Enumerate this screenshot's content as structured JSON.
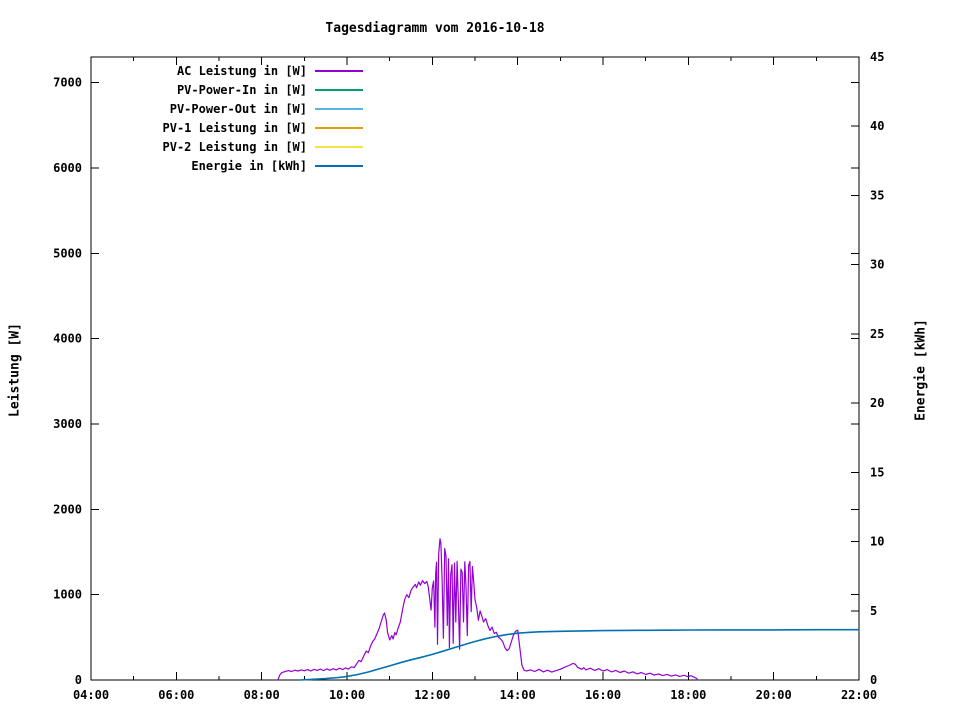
{
  "page": {
    "background": "#ffffff"
  },
  "chart_data": {
    "type": "line",
    "title": "Tagesdiagramm vom 2016-10-18",
    "grid": false,
    "legend_position": "top-left-inside",
    "x_axis": {
      "unit": "time-of-day",
      "range_hours": [
        4,
        22
      ],
      "major_tick_step_hours": 2,
      "minor_tick_step_hours": 1,
      "tick_labels": [
        "04:00",
        "06:00",
        "08:00",
        "10:00",
        "12:00",
        "14:00",
        "16:00",
        "18:00",
        "20:00",
        "22:00"
      ]
    },
    "y_left": {
      "label": "Leistung [W]",
      "ticks": [
        0,
        1000,
        2000,
        3000,
        4000,
        5000,
        6000,
        7000
      ],
      "range": [
        0,
        7300
      ]
    },
    "y_right": {
      "label": "Energie [kWh]",
      "ticks": [
        0,
        5,
        10,
        15,
        20,
        25,
        30,
        35,
        40,
        45
      ],
      "range": [
        0,
        45
      ]
    },
    "series": [
      {
        "name": "AC Leistung in [W]",
        "color": "#9400d3",
        "axis": "left",
        "points": [
          [
            8.38,
            0
          ],
          [
            8.42,
            55
          ],
          [
            8.47,
            85
          ],
          [
            8.55,
            100
          ],
          [
            8.63,
            110
          ],
          [
            8.7,
            100
          ],
          [
            8.78,
            115
          ],
          [
            8.85,
            105
          ],
          [
            8.93,
            118
          ],
          [
            9.0,
            108
          ],
          [
            9.08,
            122
          ],
          [
            9.15,
            105
          ],
          [
            9.23,
            125
          ],
          [
            9.3,
            112
          ],
          [
            9.38,
            128
          ],
          [
            9.45,
            110
          ],
          [
            9.53,
            130
          ],
          [
            9.6,
            115
          ],
          [
            9.68,
            132
          ],
          [
            9.75,
            118
          ],
          [
            9.83,
            138
          ],
          [
            9.9,
            122
          ],
          [
            9.97,
            142
          ],
          [
            10.03,
            128
          ],
          [
            10.1,
            155
          ],
          [
            10.17,
            145
          ],
          [
            10.22,
            185
          ],
          [
            10.28,
            230
          ],
          [
            10.33,
            215
          ],
          [
            10.4,
            290
          ],
          [
            10.45,
            340
          ],
          [
            10.5,
            320
          ],
          [
            10.55,
            395
          ],
          [
            10.6,
            450
          ],
          [
            10.65,
            480
          ],
          [
            10.7,
            540
          ],
          [
            10.75,
            600
          ],
          [
            10.8,
            680
          ],
          [
            10.85,
            760
          ],
          [
            10.88,
            785
          ],
          [
            10.92,
            700
          ],
          [
            10.95,
            560
          ],
          [
            11.0,
            470
          ],
          [
            11.05,
            520
          ],
          [
            11.08,
            480
          ],
          [
            11.12,
            555
          ],
          [
            11.15,
            530
          ],
          [
            11.2,
            610
          ],
          [
            11.25,
            680
          ],
          [
            11.3,
            820
          ],
          [
            11.35,
            940
          ],
          [
            11.4,
            1000
          ],
          [
            11.45,
            965
          ],
          [
            11.5,
            1050
          ],
          [
            11.55,
            1090
          ],
          [
            11.6,
            1120
          ],
          [
            11.63,
            1080
          ],
          [
            11.68,
            1150
          ],
          [
            11.72,
            1110
          ],
          [
            11.77,
            1165
          ],
          [
            11.82,
            1130
          ],
          [
            11.87,
            1155
          ],
          [
            11.9,
            1100
          ],
          [
            11.93,
            990
          ],
          [
            11.97,
            820
          ],
          [
            12.0,
            1080
          ],
          [
            12.03,
            1160
          ],
          [
            12.06,
            620
          ],
          [
            12.08,
            1250
          ],
          [
            12.1,
            1380
          ],
          [
            12.12,
            420
          ],
          [
            12.15,
            1480
          ],
          [
            12.18,
            1655
          ],
          [
            12.2,
            1600
          ],
          [
            12.23,
            1180
          ],
          [
            12.26,
            490
          ],
          [
            12.29,
            1540
          ],
          [
            12.32,
            1450
          ],
          [
            12.35,
            640
          ],
          [
            12.38,
            1420
          ],
          [
            12.4,
            380
          ],
          [
            12.43,
            1230
          ],
          [
            12.46,
            1350
          ],
          [
            12.49,
            430
          ],
          [
            12.52,
            1370
          ],
          [
            12.55,
            680
          ],
          [
            12.58,
            1390
          ],
          [
            12.61,
            900
          ],
          [
            12.64,
            360
          ],
          [
            12.67,
            1300
          ],
          [
            12.7,
            1260
          ],
          [
            12.73,
            680
          ],
          [
            12.76,
            1385
          ],
          [
            12.79,
            1100
          ],
          [
            12.82,
            520
          ],
          [
            12.85,
            1340
          ],
          [
            12.88,
            1390
          ],
          [
            12.91,
            800
          ],
          [
            12.94,
            1330
          ],
          [
            12.97,
            1150
          ],
          [
            13.0,
            940
          ],
          [
            13.04,
            850
          ],
          [
            13.08,
            700
          ],
          [
            13.12,
            810
          ],
          [
            13.16,
            750
          ],
          [
            13.2,
            680
          ],
          [
            13.25,
            720
          ],
          [
            13.3,
            640
          ],
          [
            13.35,
            580
          ],
          [
            13.4,
            620
          ],
          [
            13.45,
            545
          ],
          [
            13.5,
            560
          ],
          [
            13.55,
            500
          ],
          [
            13.6,
            480
          ],
          [
            13.65,
            450
          ],
          [
            13.7,
            380
          ],
          [
            13.75,
            345
          ],
          [
            13.8,
            365
          ],
          [
            13.85,
            445
          ],
          [
            13.9,
            525
          ],
          [
            13.95,
            570
          ],
          [
            14.0,
            585
          ],
          [
            14.05,
            380
          ],
          [
            14.1,
            175
          ],
          [
            14.15,
            115
          ],
          [
            14.2,
            105
          ],
          [
            14.3,
            118
          ],
          [
            14.4,
            100
          ],
          [
            14.5,
            125
          ],
          [
            14.6,
            95
          ],
          [
            14.7,
            115
          ],
          [
            14.8,
            92
          ],
          [
            14.9,
            110
          ],
          [
            15.0,
            125
          ],
          [
            15.1,
            150
          ],
          [
            15.2,
            170
          ],
          [
            15.3,
            195
          ],
          [
            15.35,
            185
          ],
          [
            15.4,
            150
          ],
          [
            15.5,
            125
          ],
          [
            15.55,
            145
          ],
          [
            15.6,
            118
          ],
          [
            15.7,
            138
          ],
          [
            15.8,
            112
          ],
          [
            15.9,
            132
          ],
          [
            16.0,
            105
          ],
          [
            16.1,
            122
          ],
          [
            16.2,
            95
          ],
          [
            16.3,
            112
          ],
          [
            16.4,
            88
          ],
          [
            16.5,
            105
          ],
          [
            16.6,
            80
          ],
          [
            16.7,
            96
          ],
          [
            16.8,
            72
          ],
          [
            16.9,
            88
          ],
          [
            17.0,
            65
          ],
          [
            17.1,
            80
          ],
          [
            17.2,
            58
          ],
          [
            17.3,
            72
          ],
          [
            17.4,
            52
          ],
          [
            17.5,
            66
          ],
          [
            17.6,
            46
          ],
          [
            17.7,
            60
          ],
          [
            17.8,
            42
          ],
          [
            17.9,
            55
          ],
          [
            18.0,
            38
          ],
          [
            18.05,
            50
          ],
          [
            18.1,
            42
          ],
          [
            18.15,
            30
          ],
          [
            18.2,
            18
          ],
          [
            18.22,
            0
          ]
        ]
      },
      {
        "name": "PV-Power-In in [W]",
        "color": "#009e73",
        "axis": "left",
        "points": []
      },
      {
        "name": "PV-Power-Out in [W]",
        "color": "#56b4e9",
        "axis": "left",
        "points": []
      },
      {
        "name": "PV-1 Leistung in [W]",
        "color": "#e69f00",
        "axis": "left",
        "points": []
      },
      {
        "name": "PV-2 Leistung in [W]",
        "color": "#f0e442",
        "axis": "left",
        "points": []
      },
      {
        "name": "Energie in [kWh]",
        "color": "#0072b2",
        "axis": "right",
        "points": [
          [
            8.9,
            0.0
          ],
          [
            9.2,
            0.05
          ],
          [
            9.5,
            0.1
          ],
          [
            9.8,
            0.18
          ],
          [
            10.0,
            0.26
          ],
          [
            10.25,
            0.4
          ],
          [
            10.5,
            0.58
          ],
          [
            10.75,
            0.8
          ],
          [
            11.0,
            1.02
          ],
          [
            11.25,
            1.25
          ],
          [
            11.5,
            1.46
          ],
          [
            11.75,
            1.65
          ],
          [
            12.0,
            1.85
          ],
          [
            12.25,
            2.08
          ],
          [
            12.5,
            2.32
          ],
          [
            12.75,
            2.56
          ],
          [
            13.0,
            2.78
          ],
          [
            13.25,
            2.98
          ],
          [
            13.5,
            3.15
          ],
          [
            13.75,
            3.28
          ],
          [
            14.0,
            3.38
          ],
          [
            14.25,
            3.44
          ],
          [
            14.5,
            3.48
          ],
          [
            15.0,
            3.52
          ],
          [
            15.5,
            3.55
          ],
          [
            16.0,
            3.57
          ],
          [
            16.5,
            3.58
          ],
          [
            17.0,
            3.59
          ],
          [
            17.5,
            3.6
          ],
          [
            18.0,
            3.61
          ],
          [
            19.0,
            3.62
          ],
          [
            20.0,
            3.62
          ],
          [
            21.0,
            3.63
          ],
          [
            22.0,
            3.63
          ]
        ]
      }
    ]
  }
}
